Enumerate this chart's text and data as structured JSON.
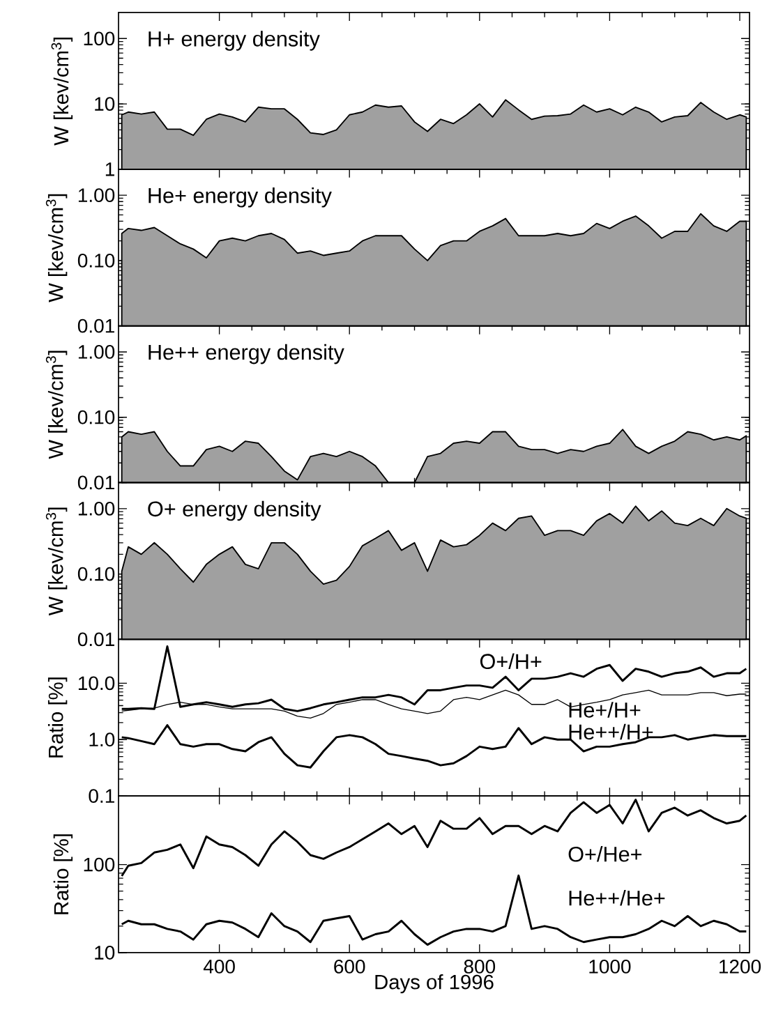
{
  "chart_data": [
    {
      "type": "area",
      "title": "H+ energy density",
      "ylabel": "W [kev/cm$^{3}$]",
      "log": true,
      "tick_labels": "y",
      "xlim": [
        245,
        1215
      ],
      "xticks": [
        400,
        600,
        800,
        1000,
        1200
      ],
      "ylim": [
        1,
        250
      ],
      "yticks": [
        1,
        10,
        100
      ],
      "x": [
        250,
        260,
        280,
        300,
        320,
        340,
        360,
        380,
        400,
        420,
        440,
        460,
        480,
        500,
        520,
        540,
        560,
        580,
        600,
        620,
        640,
        660,
        680,
        700,
        720,
        740,
        760,
        780,
        800,
        820,
        840,
        860,
        880,
        900,
        920,
        940,
        960,
        980,
        1000,
        1020,
        1040,
        1060,
        1080,
        1100,
        1120,
        1140,
        1160,
        1180,
        1200,
        1210
      ],
      "series": [
        {
          "color": "#a0a0a0",
          "values": [
            6.8,
            7.5,
            7,
            7.5,
            4.1,
            4.1,
            3.3,
            5.8,
            7,
            6.3,
            5.3,
            8.9,
            8.4,
            8.4,
            5.8,
            3.6,
            3.4,
            4,
            6.8,
            7.5,
            9.6,
            8.9,
            9.3,
            5.3,
            3.8,
            5.8,
            5,
            6.8,
            10,
            6.3,
            11.5,
            8.1,
            5.8,
            6.5,
            6.6,
            7,
            9.6,
            7.5,
            8.4,
            6.8,
            8.9,
            7.5,
            5.3,
            6.3,
            6.6,
            10.5,
            7.5,
            5.8,
            6.8,
            6.3
          ]
        }
      ]
    },
    {
      "type": "area",
      "title": "He+ energy density",
      "ylabel": "W [kev/cm$^{3}$]",
      "log": true,
      "tick_labels": "y",
      "xlim": [
        245,
        1215
      ],
      "xticks": [
        400,
        600,
        800,
        1000,
        1200
      ],
      "ylim": [
        0.01,
        2.5
      ],
      "yticks": [
        {
          "value": 0.01,
          "label": "0.01"
        },
        {
          "value": 0.1,
          "label": "0.10"
        },
        {
          "value": 1,
          "label": "1.00"
        }
      ],
      "x": [
        250,
        260,
        280,
        300,
        320,
        340,
        360,
        380,
        400,
        420,
        440,
        460,
        480,
        500,
        520,
        540,
        560,
        580,
        600,
        620,
        640,
        660,
        680,
        700,
        720,
        740,
        760,
        780,
        800,
        820,
        840,
        860,
        880,
        900,
        920,
        940,
        960,
        980,
        1000,
        1020,
        1040,
        1060,
        1080,
        1100,
        1120,
        1140,
        1160,
        1180,
        1200,
        1210
      ],
      "series": [
        {
          "color": "#a0a0a0",
          "values": [
            0.26,
            0.31,
            0.29,
            0.32,
            0.24,
            0.18,
            0.15,
            0.11,
            0.2,
            0.22,
            0.2,
            0.24,
            0.26,
            0.21,
            0.13,
            0.14,
            0.12,
            0.13,
            0.14,
            0.2,
            0.24,
            0.24,
            0.24,
            0.15,
            0.1,
            0.17,
            0.2,
            0.2,
            0.28,
            0.34,
            0.44,
            0.24,
            0.24,
            0.24,
            0.26,
            0.24,
            0.26,
            0.37,
            0.31,
            0.4,
            0.48,
            0.34,
            0.22,
            0.28,
            0.28,
            0.52,
            0.34,
            0.28,
            0.4,
            0.4
          ]
        }
      ]
    },
    {
      "type": "area",
      "title": "He++ energy density",
      "ylabel": "W [kev/cm$^{3}$]",
      "log": true,
      "tick_labels": "y",
      "xlim": [
        245,
        1215
      ],
      "xticks": [
        400,
        600,
        800,
        1000,
        1200
      ],
      "ylim": [
        0.01,
        2.5
      ],
      "yticks": [
        {
          "value": 0.01,
          "label": "0.01"
        },
        {
          "value": 0.1,
          "label": "0.10"
        },
        {
          "value": 1,
          "label": "1.00"
        }
      ],
      "x": [
        250,
        260,
        280,
        300,
        320,
        340,
        360,
        380,
        400,
        420,
        440,
        460,
        480,
        500,
        520,
        540,
        560,
        580,
        600,
        620,
        640,
        660,
        680,
        700,
        720,
        740,
        760,
        780,
        800,
        820,
        840,
        860,
        880,
        900,
        920,
        940,
        960,
        980,
        1000,
        1020,
        1040,
        1060,
        1080,
        1100,
        1120,
        1140,
        1160,
        1180,
        1200,
        1210
      ],
      "series": [
        {
          "color": "#a0a0a0",
          "values": [
            0.05,
            0.06,
            0.055,
            0.06,
            0.03,
            0.018,
            0.018,
            0.032,
            0.036,
            0.03,
            0.043,
            0.04,
            0.025,
            0.015,
            0.011,
            0.025,
            0.028,
            0.025,
            0.03,
            0.025,
            0.018,
            0.01,
            0.01,
            0.01,
            0.025,
            0.028,
            0.04,
            0.043,
            0.04,
            0.06,
            0.06,
            0.036,
            0.032,
            0.032,
            0.028,
            0.032,
            0.03,
            0.036,
            0.04,
            0.065,
            0.036,
            0.028,
            0.036,
            0.043,
            0.06,
            0.055,
            0.045,
            0.05,
            0.045,
            0.052
          ]
        }
      ]
    },
    {
      "type": "area",
      "title": "O+ energy density",
      "ylabel": "W [kev/cm$^{3}$]",
      "log": true,
      "tick_labels": "y",
      "xlim": [
        245,
        1215
      ],
      "xticks": [
        400,
        600,
        800,
        1000,
        1200
      ],
      "ylim": [
        0.01,
        2.5
      ],
      "yticks": [
        {
          "value": 0.01,
          "label": "0.01"
        },
        {
          "value": 0.1,
          "label": "0.10"
        },
        {
          "value": 1,
          "label": "1.00"
        }
      ],
      "x": [
        250,
        260,
        280,
        300,
        320,
        340,
        360,
        380,
        400,
        420,
        440,
        460,
        480,
        500,
        520,
        540,
        560,
        580,
        600,
        620,
        640,
        660,
        680,
        700,
        720,
        740,
        760,
        780,
        800,
        820,
        840,
        860,
        880,
        900,
        920,
        940,
        960,
        980,
        1000,
        1020,
        1040,
        1060,
        1080,
        1100,
        1120,
        1140,
        1160,
        1180,
        1200,
        1210
      ],
      "series": [
        {
          "color": "#a0a0a0",
          "values": [
            0.11,
            0.26,
            0.2,
            0.3,
            0.2,
            0.12,
            0.075,
            0.14,
            0.2,
            0.26,
            0.14,
            0.12,
            0.3,
            0.3,
            0.2,
            0.11,
            0.07,
            0.08,
            0.13,
            0.27,
            0.35,
            0.46,
            0.23,
            0.3,
            0.11,
            0.33,
            0.26,
            0.28,
            0.39,
            0.6,
            0.46,
            0.71,
            0.77,
            0.39,
            0.46,
            0.46,
            0.39,
            0.65,
            0.84,
            0.6,
            1.09,
            0.65,
            0.92,
            0.6,
            0.55,
            0.71,
            0.55,
            1.0,
            0.77,
            0.71
          ]
        }
      ]
    },
    {
      "type": "line",
      "ylabel": "Ratio [%]",
      "log": true,
      "tick_labels": "y",
      "marker": "none",
      "line_style": "solid",
      "xlim": [
        245,
        1215
      ],
      "xticks": [
        400,
        600,
        800,
        1000,
        1200
      ],
      "ylim": [
        0.1,
        60
      ],
      "yticks": [
        {
          "value": 0.1,
          "label": "0.1"
        },
        {
          "value": 1,
          "label": "1.0"
        },
        {
          "value": 10,
          "label": "10.0"
        }
      ],
      "x": [
        250,
        260,
        280,
        300,
        320,
        340,
        360,
        380,
        400,
        420,
        440,
        460,
        480,
        500,
        520,
        540,
        560,
        580,
        600,
        620,
        640,
        660,
        680,
        700,
        720,
        740,
        760,
        780,
        800,
        820,
        840,
        860,
        880,
        900,
        920,
        940,
        960,
        980,
        1000,
        1020,
        1040,
        1060,
        1080,
        1100,
        1120,
        1140,
        1160,
        1180,
        1200,
        1210
      ],
      "series": [
        {
          "name": "O+/H+",
          "color": "#000000",
          "values": [
            3.5,
            3.5,
            3.6,
            3.5,
            45,
            3.8,
            4.2,
            4.6,
            4.2,
            3.8,
            4.2,
            4.4,
            5.1,
            3.5,
            3.2,
            3.6,
            4.2,
            4.6,
            5.1,
            5.6,
            5.6,
            6.2,
            5.6,
            4.2,
            7.5,
            7.5,
            8.3,
            9.1,
            9.1,
            8.3,
            13,
            7.5,
            12,
            12,
            13,
            15,
            13,
            18,
            21,
            11,
            18,
            16,
            13,
            15,
            16,
            19,
            13,
            15,
            15,
            18
          ]
        },
        {
          "name": "He+/H+",
          "color": "#000000",
          "values": [
            3.2,
            3.3,
            3.5,
            3.6,
            4.2,
            4.6,
            4.2,
            4.2,
            3.8,
            3.5,
            3.5,
            3.5,
            3.5,
            3.2,
            2.6,
            2.4,
            2.9,
            4.2,
            4.6,
            5.1,
            5.1,
            4.2,
            3.5,
            3.2,
            2.9,
            3.2,
            5.1,
            5.6,
            5.1,
            6.2,
            7.5,
            6.2,
            4.2,
            4.2,
            5.1,
            3.8,
            4.2,
            4.6,
            5.1,
            6.2,
            6.8,
            7.5,
            6.2,
            6.2,
            6.2,
            6.8,
            6.8,
            6.0,
            6.4,
            6.4
          ]
        },
        {
          "name": "He++/H+",
          "color": "#000000",
          "values": [
            1.1,
            1.06,
            0.94,
            0.83,
            1.8,
            0.83,
            0.75,
            0.83,
            0.83,
            0.68,
            0.62,
            0.9,
            1.1,
            0.56,
            0.35,
            0.32,
            0.62,
            1.1,
            1.2,
            1.1,
            0.83,
            0.56,
            0.51,
            0.46,
            0.42,
            0.35,
            0.38,
            0.51,
            0.75,
            0.68,
            0.75,
            1.6,
            0.83,
            1.1,
            1.0,
            1.0,
            0.62,
            0.75,
            0.75,
            0.83,
            0.9,
            1.1,
            1.1,
            1.2,
            1.0,
            1.1,
            1.2,
            1.15,
            1.15,
            1.15
          ]
        }
      ]
    },
    {
      "type": "line",
      "ylabel": "Ratio [%]",
      "xlabel": "Days of 1996",
      "log": true,
      "marker": "none",
      "line_style": "solid",
      "xlim": [
        245,
        1215
      ],
      "xticks": [
        400,
        600,
        800,
        1000,
        1200
      ],
      "ylim": [
        10,
        600
      ],
      "yticks": [
        10,
        100
      ],
      "x": [
        250,
        260,
        280,
        300,
        320,
        340,
        360,
        380,
        400,
        420,
        440,
        460,
        480,
        500,
        520,
        540,
        560,
        580,
        600,
        620,
        640,
        660,
        680,
        700,
        720,
        740,
        760,
        780,
        800,
        820,
        840,
        860,
        880,
        900,
        920,
        940,
        960,
        980,
        1000,
        1020,
        1040,
        1060,
        1080,
        1100,
        1120,
        1140,
        1160,
        1180,
        1200,
        1210
      ],
      "series": [
        {
          "name": "O+/He+",
          "color": "#000000",
          "values": [
            74,
            97,
            104,
            137,
            147,
            169,
            91,
            208,
            169,
            158,
            128,
            97,
            169,
            238,
            181,
            128,
            116,
            137,
            158,
            194,
            238,
            293,
            222,
            274,
            158,
            314,
            255,
            255,
            337,
            222,
            274,
            274,
            222,
            274,
            238,
            386,
            509,
            386,
            474,
            293,
            544,
            238,
            386,
            442,
            360,
            413,
            337,
            293,
            314,
            360
          ]
        },
        {
          "name": "He++/He+",
          "color": "#000000",
          "values": [
            21,
            23,
            21,
            21,
            18.6,
            17.4,
            14.1,
            21,
            23,
            22,
            18.6,
            15,
            28,
            20,
            17.4,
            13.2,
            23,
            24.5,
            26,
            14.1,
            16.2,
            17.4,
            23,
            16.2,
            12.3,
            15,
            17.4,
            18.6,
            18.6,
            17.4,
            20,
            75,
            18.6,
            20,
            18.6,
            15,
            13.2,
            14.1,
            15,
            15,
            16.2,
            18.6,
            23,
            20,
            26,
            20,
            23,
            21,
            17.4,
            17.4
          ]
        }
      ]
    }
  ]
}
